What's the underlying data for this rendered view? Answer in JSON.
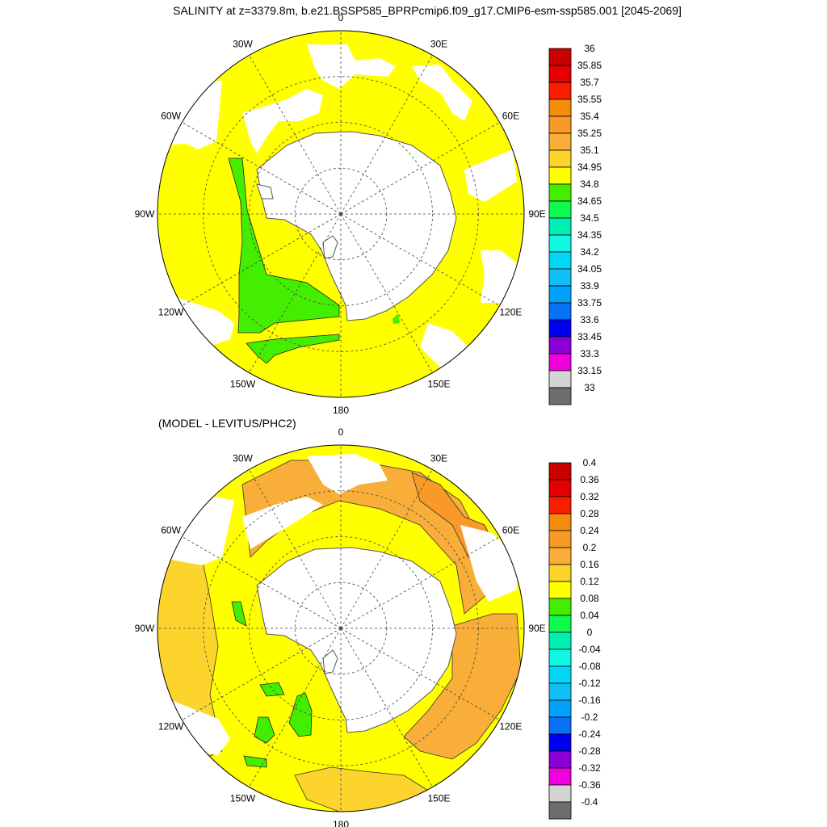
{
  "title": "SALINITY at z=3379.8m, b.e21.BSSP585_BPRPcmip6.f09_g17.CMIP6-esm-ssp585.001 [2045-2069]",
  "colors": {
    "land": "#ffffff",
    "coast": "#555555",
    "grid": "#444444",
    "contour": "#333333",
    "yellow": "#ffff00",
    "green": "#44ee00",
    "orange": "#f9a535",
    "orange_dark": "#f48c0c",
    "gold": "#fcd42c"
  },
  "chart_data": [
    {
      "type": "heatmap",
      "projection": "south-polar-stereographic",
      "title": "SALINITY at z=3379.8m, b.e21.BSSP585_BPRPcmip6.f09_g17.CMIP6-esm-ssp585.001 [2045-2069]",
      "longitude_labels": [
        {
          "lon": 0,
          "text": "0"
        },
        {
          "lon": 30,
          "text": "30E"
        },
        {
          "lon": 60,
          "text": "60E"
        },
        {
          "lon": 90,
          "text": "90E"
        },
        {
          "lon": 120,
          "text": "120E"
        },
        {
          "lon": 150,
          "text": "150E"
        },
        {
          "lon": 180,
          "text": "180"
        },
        {
          "lon": -150,
          "text": "150W"
        },
        {
          "lon": -120,
          "text": "120W"
        },
        {
          "lon": -90,
          "text": "90W"
        },
        {
          "lon": -60,
          "text": "60W"
        },
        {
          "lon": -30,
          "text": "30W"
        }
      ],
      "grid_latitudes": [
        -80,
        -70,
        -60
      ],
      "colorbar": {
        "levels": [
          36,
          35.85,
          35.7,
          35.55,
          35.4,
          35.25,
          35.1,
          34.95,
          34.8,
          34.65,
          34.5,
          34.35,
          34.2,
          34.05,
          33.9,
          33.75,
          33.6,
          33.45,
          33.3,
          33.15,
          33
        ],
        "labels": [
          "36",
          "35.85",
          "35.7",
          "35.55",
          "35.4",
          "35.25",
          "35.1",
          "34.95",
          "34.8",
          "34.65",
          "34.5",
          "34.35",
          "34.2",
          "34.05",
          "33.9",
          "33.75",
          "33.6",
          "33.45",
          "33.3",
          "33.15",
          "33"
        ],
        "colors": [
          "#c80000",
          "#e20000",
          "#fa1e00",
          "#f48c0c",
          "#f99a28",
          "#f9ae3a",
          "#fcd42c",
          "#ffff00",
          "#44ee00",
          "#10fa50",
          "#00f0b4",
          "#12f6e4",
          "#00d8f6",
          "#12bef8",
          "#00a2fc",
          "#0872f6",
          "#0000f0",
          "#8c00d8",
          "#f000dc",
          "#d4d4d4",
          "#6e6e6e"
        ]
      },
      "regions": [
        {
          "value_range": [
            34.8,
            34.95
          ],
          "color": "#ffff00",
          "extent": "most of the ocean"
        },
        {
          "value_range": [
            34.65,
            34.8
          ],
          "color": "#44ee00",
          "extent": "Pacific sector near 90W-180"
        }
      ]
    },
    {
      "type": "heatmap",
      "projection": "south-polar-stereographic",
      "title": "(MODEL - LEVITUS/PHC2)",
      "longitude_labels": [
        {
          "lon": 0,
          "text": "0"
        },
        {
          "lon": 30,
          "text": "30E"
        },
        {
          "lon": 60,
          "text": "60E"
        },
        {
          "lon": 90,
          "text": "90E"
        },
        {
          "lon": 120,
          "text": "120E"
        },
        {
          "lon": 150,
          "text": "150E"
        },
        {
          "lon": 180,
          "text": "180"
        },
        {
          "lon": -150,
          "text": "150W"
        },
        {
          "lon": -120,
          "text": "120W"
        },
        {
          "lon": -90,
          "text": "90W"
        },
        {
          "lon": -60,
          "text": "60W"
        },
        {
          "lon": -30,
          "text": "30W"
        }
      ],
      "grid_latitudes": [
        -80,
        -70,
        -60
      ],
      "colorbar": {
        "levels": [
          0.4,
          0.36,
          0.32,
          0.28,
          0.24,
          0.2,
          0.16,
          0.12,
          0.08,
          0.04,
          0,
          -0.04,
          -0.08,
          -0.12,
          -0.16,
          -0.2,
          -0.24,
          -0.28,
          -0.32,
          -0.36,
          -0.4
        ],
        "labels": [
          "0.4",
          "0.36",
          "0.32",
          "0.28",
          "0.24",
          "0.2",
          "0.16",
          "0.12",
          "0.08",
          "0.04",
          "0",
          "-0.04",
          "-0.08",
          "-0.12",
          "-0.16",
          "-0.2",
          "-0.24",
          "-0.28",
          "-0.32",
          "-0.36",
          "-0.4"
        ],
        "colors": [
          "#c80000",
          "#e20000",
          "#fa1e00",
          "#f48c0c",
          "#f99a28",
          "#f9ae3a",
          "#fcd42c",
          "#ffff00",
          "#44ee00",
          "#10fa50",
          "#00f0b4",
          "#12f6e4",
          "#00d8f6",
          "#12bef8",
          "#00a2fc",
          "#0872f6",
          "#0000f0",
          "#8c00d8",
          "#f000dc",
          "#d4d4d4",
          "#6e6e6e"
        ]
      },
      "regions": [
        {
          "value_range": [
            0.16,
            0.2
          ],
          "color": "#f9ae3a",
          "extent": "Atlantic / Indian sectors"
        },
        {
          "value_range": [
            0.2,
            0.24
          ],
          "color": "#f99a28",
          "extent": "near 60E"
        },
        {
          "value_range": [
            0.12,
            0.16
          ],
          "color": "#fcd42c",
          "extent": "western margins"
        },
        {
          "value_range": [
            0.08,
            0.12
          ],
          "color": "#ffff00",
          "extent": "Pacific sector"
        },
        {
          "value_range": [
            0.04,
            0.08
          ],
          "color": "#44ee00",
          "extent": "small patches near 120W-150W"
        }
      ]
    }
  ]
}
